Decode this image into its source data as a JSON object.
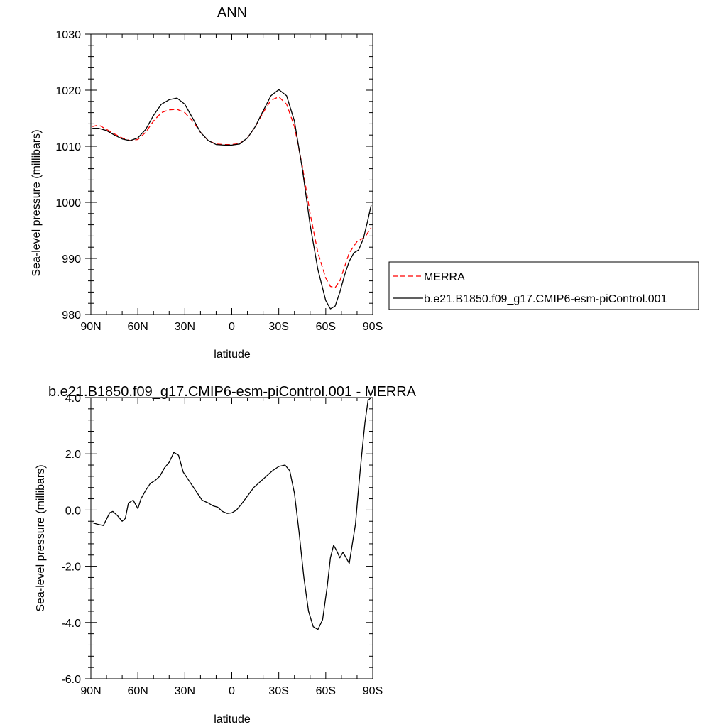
{
  "chart_data": [
    {
      "type": "line",
      "title": "ANN",
      "xlabel": "latitude",
      "ylabel": "Sea-level pressure (millibars)",
      "xlim": [
        90,
        -90
      ],
      "ylim": [
        980,
        1030
      ],
      "x_ticks": [
        90,
        60,
        30,
        0,
        -30,
        -60,
        -90
      ],
      "x_tick_labels": [
        "90N",
        "60N",
        "30N",
        "0",
        "30S",
        "60S",
        "90S"
      ],
      "y_ticks": [
        980,
        990,
        1000,
        1010,
        1020,
        1030
      ],
      "y_tick_labels": [
        "980",
        "990",
        "1000",
        "1010",
        "1020",
        "1030"
      ],
      "grid": false,
      "legend": "right",
      "series": [
        {
          "name": "MERRA",
          "color": "#ff0000",
          "dash": "dashed",
          "x": [
            89,
            85,
            80,
            75,
            70,
            65,
            60,
            55,
            50,
            45,
            40,
            35,
            30,
            25,
            20,
            15,
            10,
            5,
            0,
            -5,
            -10,
            -15,
            -20,
            -25,
            -30,
            -35,
            -40,
            -45,
            -50,
            -55,
            -60,
            -63,
            -66,
            -69,
            -72,
            -75,
            -80,
            -85,
            -89
          ],
          "y": [
            1013.5,
            1013.8,
            1013.0,
            1012.2,
            1011.5,
            1011.0,
            1011.2,
            1012.5,
            1014.5,
            1016.0,
            1016.5,
            1016.6,
            1016.0,
            1014.5,
            1012.5,
            1011.0,
            1010.4,
            1010.3,
            1010.3,
            1010.5,
            1011.5,
            1013.5,
            1016.0,
            1018.2,
            1018.8,
            1017.5,
            1013.5,
            1006.5,
            998.0,
            991.0,
            986.5,
            985.0,
            984.8,
            986.0,
            988.5,
            991.0,
            993.0,
            993.8,
            995.5
          ]
        },
        {
          "name": "b.e21.B1850.f09_g17.CMIP6-esm-piControl.001",
          "color": "#000000",
          "dash": "solid",
          "x": [
            89,
            85,
            80,
            75,
            70,
            65,
            60,
            55,
            50,
            45,
            40,
            35,
            30,
            25,
            20,
            15,
            10,
            5,
            0,
            -5,
            -10,
            -15,
            -20,
            -25,
            -30,
            -35,
            -40,
            -45,
            -50,
            -55,
            -60,
            -63,
            -66,
            -69,
            -72,
            -75,
            -78,
            -81,
            -84,
            -87,
            -89
          ],
          "y": [
            1013.2,
            1013.2,
            1012.8,
            1012.0,
            1011.3,
            1011.0,
            1011.5,
            1013.0,
            1015.5,
            1017.5,
            1018.3,
            1018.6,
            1017.5,
            1015.0,
            1012.5,
            1011.0,
            1010.3,
            1010.2,
            1010.2,
            1010.4,
            1011.5,
            1013.5,
            1016.3,
            1019.0,
            1020.1,
            1019.0,
            1014.5,
            1006.0,
            996.0,
            988.0,
            982.5,
            981.0,
            981.5,
            984.0,
            987.0,
            989.5,
            991.0,
            991.5,
            993.5,
            997.0,
            999.5
          ]
        }
      ]
    },
    {
      "type": "line",
      "title": "b.e21.B1850.f09_g17.CMIP6-esm-piControl.001 - MERRA",
      "xlabel": "latitude",
      "ylabel": "Sea-level pressure (millibars)",
      "xlim": [
        90,
        -90
      ],
      "ylim": [
        -6,
        4
      ],
      "x_ticks": [
        90,
        60,
        30,
        0,
        -30,
        -60,
        -90
      ],
      "x_tick_labels": [
        "90N",
        "60N",
        "30N",
        "0",
        "30S",
        "60S",
        "90S"
      ],
      "y_ticks": [
        -6,
        -4,
        -2,
        0,
        2,
        4
      ],
      "y_tick_labels": [
        "-6.0",
        "-4.0",
        "-2.0",
        "0.0",
        "2.0",
        "4.0"
      ],
      "grid": false,
      "series": [
        {
          "color": "#000000",
          "dash": "solid",
          "x": [
            89,
            86,
            82,
            78,
            76,
            73,
            70,
            68,
            66,
            63,
            60,
            58,
            55,
            52,
            49,
            46,
            43,
            40,
            37,
            34,
            31,
            28,
            25,
            22,
            19,
            15,
            12,
            9,
            6,
            3,
            0,
            -3,
            -6,
            -10,
            -14,
            -18,
            -22,
            -26,
            -30,
            -34,
            -37,
            -40,
            -43,
            -46,
            -49,
            -52,
            -55,
            -58,
            -61,
            -63,
            -65,
            -67,
            -69,
            -71,
            -73,
            -75,
            -77,
            -79,
            -81,
            -83,
            -85,
            -87,
            -89
          ],
          "y": [
            -0.45,
            -0.5,
            -0.55,
            -0.1,
            -0.05,
            -0.2,
            -0.4,
            -0.3,
            0.25,
            0.35,
            0.05,
            0.4,
            0.7,
            0.95,
            1.05,
            1.2,
            1.5,
            1.7,
            2.05,
            1.95,
            1.35,
            1.1,
            0.85,
            0.6,
            0.35,
            0.25,
            0.15,
            0.1,
            -0.05,
            -0.12,
            -0.1,
            0.0,
            0.2,
            0.5,
            0.8,
            1.0,
            1.2,
            1.4,
            1.55,
            1.6,
            1.4,
            0.6,
            -0.8,
            -2.4,
            -3.6,
            -4.15,
            -4.25,
            -3.9,
            -2.7,
            -1.7,
            -1.25,
            -1.45,
            -1.7,
            -1.5,
            -1.7,
            -1.9,
            -1.2,
            -0.5,
            0.8,
            2.0,
            3.1,
            3.9,
            4.0
          ]
        }
      ]
    }
  ]
}
